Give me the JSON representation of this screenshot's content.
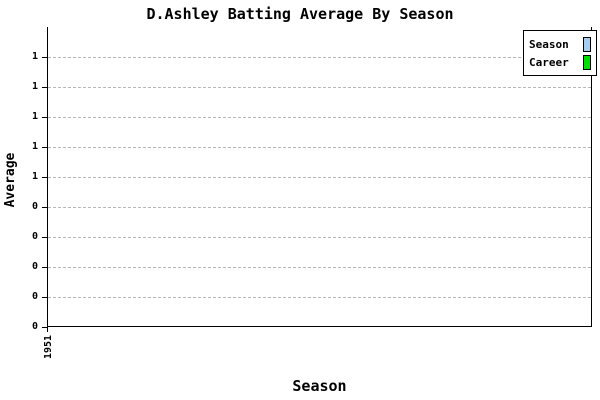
{
  "title": "D.Ashley Batting Average By Season",
  "chart_data": {
    "type": "line",
    "title": "D.Ashley Batting Average By Season",
    "xlabel": "Season",
    "ylabel": "Average",
    "x_tick_labels": [
      "1951"
    ],
    "y_tick_labels_top_to_bottom": [
      "1",
      "1",
      "1",
      "1",
      "1",
      "0",
      "0",
      "0",
      "0",
      "0"
    ],
    "series": [
      {
        "name": "Season",
        "color": "#a6ccee",
        "values": []
      },
      {
        "name": "Career",
        "color": "#00dd00",
        "values": []
      }
    ],
    "grid": "horizontal-dashed",
    "grid_color": "#b8b8b8",
    "axis_color": "#000000",
    "background": "#ffffff",
    "legend_position": "top-right"
  }
}
